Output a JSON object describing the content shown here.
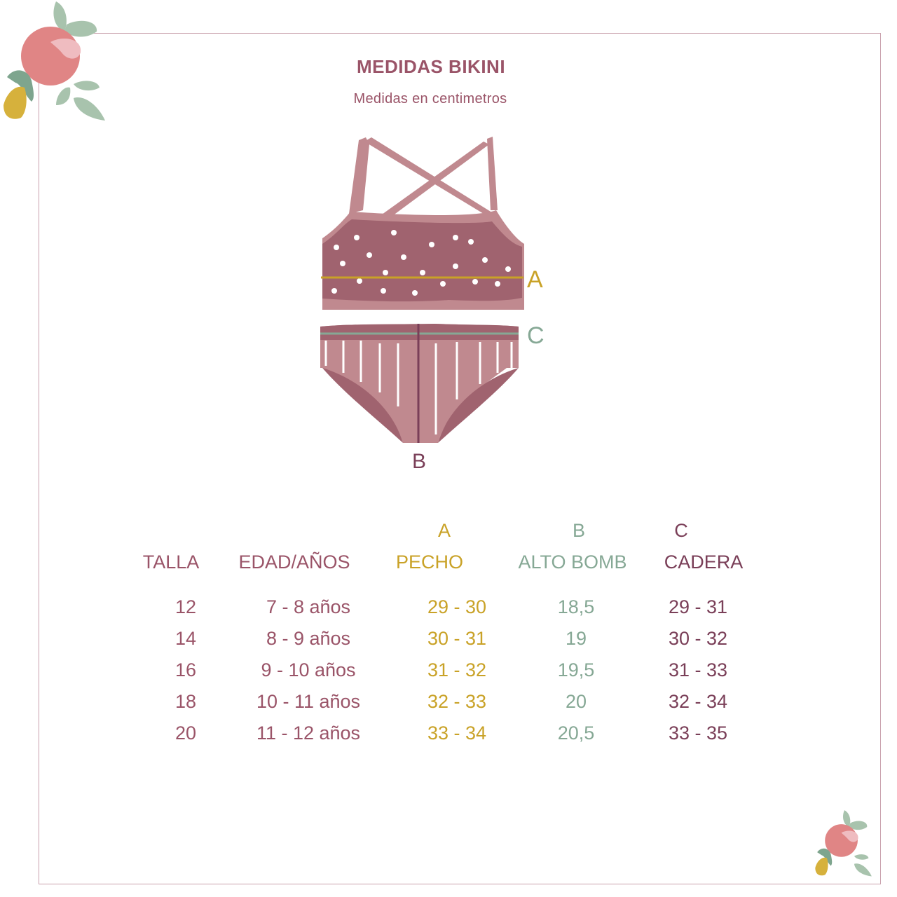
{
  "title": "MEDIDAS BIKINI",
  "subtitle": "Medidas en centimetros",
  "colors": {
    "plum": "#9a5468",
    "mustard": "#c9a227",
    "sage": "#86a895",
    "dark_plum": "#7a3f58",
    "fabric_dark": "#a0636f",
    "fabric_light": "#c0898f",
    "frame": "#c9a0ac"
  },
  "diagram": {
    "label_a": "A",
    "label_b": "B",
    "label_c": "C"
  },
  "table": {
    "letters": {
      "pecho": "A",
      "alto": "B",
      "cadera": "C"
    },
    "headers": [
      "TALLA",
      "EDAD/AÑOS",
      "PECHO",
      "ALTO BOMB",
      "CADERA"
    ],
    "rows": [
      [
        "12",
        "7 - 8 años",
        "29 - 30",
        "18,5",
        "29 - 31"
      ],
      [
        "14",
        "8 - 9 años",
        "30 - 31",
        "19",
        "30 - 32"
      ],
      [
        "16",
        "9 - 10 años",
        "31 - 32",
        "19,5",
        "31 - 33"
      ],
      [
        "18",
        "10 - 11 años",
        "32 - 33",
        "20",
        "32 - 34"
      ],
      [
        "20",
        "11 - 12 años",
        "33 - 34",
        "20,5",
        "33 - 35"
      ]
    ]
  }
}
